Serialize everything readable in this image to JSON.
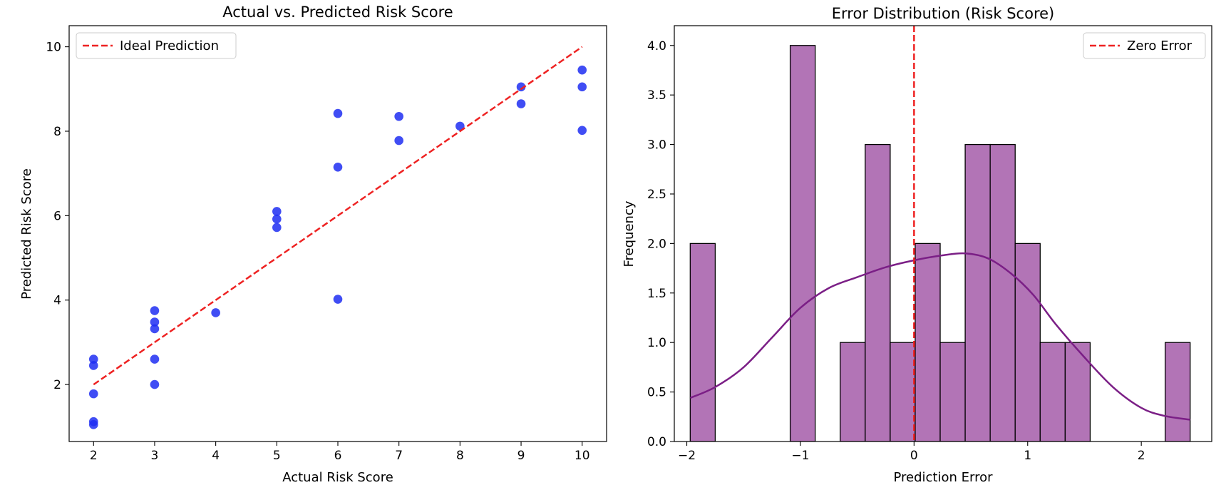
{
  "chart_data": [
    {
      "type": "scatter",
      "title": "Actual vs. Predicted Risk Score",
      "xlabel": "Actual Risk Score",
      "ylabel": "Predicted Risk Score",
      "xlim": [
        1.6,
        10.4
      ],
      "ylim": [
        0.65,
        10.5
      ],
      "xticks": [
        2,
        3,
        4,
        5,
        6,
        7,
        8,
        9,
        10
      ],
      "yticks": [
        2,
        4,
        6,
        8,
        10
      ],
      "grid": false,
      "legend": {
        "placement": "top-left",
        "entries": [
          "Ideal Prediction"
        ]
      },
      "series": [
        {
          "kind": "points",
          "color": "#1f2ef2",
          "points": [
            [
              2,
              2.6
            ],
            [
              2,
              2.45
            ],
            [
              2,
              1.78
            ],
            [
              2,
              1.12
            ],
            [
              2,
              1.05
            ],
            [
              3,
              3.75
            ],
            [
              3,
              3.48
            ],
            [
              3,
              3.32
            ],
            [
              3,
              2.6
            ],
            [
              3,
              2.0
            ],
            [
              4,
              3.7
            ],
            [
              5,
              6.1
            ],
            [
              5,
              5.92
            ],
            [
              5,
              5.72
            ],
            [
              6,
              8.42
            ],
            [
              6,
              7.15
            ],
            [
              6,
              4.02
            ],
            [
              7,
              8.35
            ],
            [
              7,
              7.78
            ],
            [
              8,
              8.12
            ],
            [
              9,
              9.05
            ],
            [
              9,
              8.65
            ],
            [
              10,
              9.45
            ],
            [
              10,
              9.05
            ],
            [
              10,
              8.02
            ]
          ]
        },
        {
          "kind": "line",
          "name": "Ideal Prediction",
          "color": "#ee2222",
          "dashed": true,
          "x": [
            2,
            10
          ],
          "y": [
            2,
            10
          ]
        }
      ]
    },
    {
      "type": "bar",
      "title": "Error Distribution (Risk Score)",
      "xlabel": "Prediction Error",
      "ylabel": "Frequency",
      "xlim": [
        -2.11,
        2.62
      ],
      "ylim": [
        0,
        4.2
      ],
      "xticks": [
        -2,
        -1,
        0,
        1,
        2
      ],
      "xtick_labels": [
        "−2",
        "−1",
        "0",
        "1",
        "2"
      ],
      "yticks": [
        0.0,
        0.5,
        1.0,
        1.5,
        2.0,
        2.5,
        3.0,
        3.5,
        4.0
      ],
      "ytick_labels": [
        "0.0",
        "0.5",
        "1.0",
        "1.5",
        "2.0",
        "2.5",
        "3.0",
        "3.5",
        "4.0"
      ],
      "grid": false,
      "legend": {
        "placement": "top-right",
        "entries": [
          "Zero Error"
        ]
      },
      "bar_color": "#b274b6",
      "bar_edge": "#000000",
      "bins": [
        {
          "x0": -1.97,
          "x1": -1.75,
          "count": 2
        },
        {
          "x0": -1.09,
          "x1": -0.87,
          "count": 4
        },
        {
          "x0": -0.65,
          "x1": -0.43,
          "count": 1
        },
        {
          "x0": -0.43,
          "x1": -0.21,
          "count": 3
        },
        {
          "x0": -0.21,
          "x1": 0.01,
          "count": 1
        },
        {
          "x0": 0.01,
          "x1": 0.23,
          "count": 2
        },
        {
          "x0": 0.23,
          "x1": 0.45,
          "count": 1
        },
        {
          "x0": 0.45,
          "x1": 0.67,
          "count": 3
        },
        {
          "x0": 0.67,
          "x1": 0.89,
          "count": 3
        },
        {
          "x0": 0.89,
          "x1": 1.11,
          "count": 2
        },
        {
          "x0": 1.11,
          "x1": 1.33,
          "count": 1
        },
        {
          "x0": 1.33,
          "x1": 1.55,
          "count": 1
        },
        {
          "x0": 2.21,
          "x1": 2.43,
          "count": 1
        }
      ],
      "kde": {
        "color": "#7b1f86",
        "x": [
          -1.97,
          -1.75,
          -1.5,
          -1.25,
          -1.0,
          -0.75,
          -0.5,
          -0.25,
          0.0,
          0.25,
          0.45,
          0.65,
          0.85,
          1.05,
          1.25,
          1.5,
          1.75,
          2.0,
          2.2,
          2.43
        ],
        "y": [
          0.44,
          0.55,
          0.75,
          1.05,
          1.35,
          1.55,
          1.66,
          1.76,
          1.83,
          1.88,
          1.9,
          1.85,
          1.7,
          1.48,
          1.18,
          0.85,
          0.55,
          0.34,
          0.26,
          0.22
        ]
      },
      "reference_line": {
        "name": "Zero Error",
        "x": 0,
        "color": "#ee2222",
        "dashed": true
      }
    }
  ]
}
